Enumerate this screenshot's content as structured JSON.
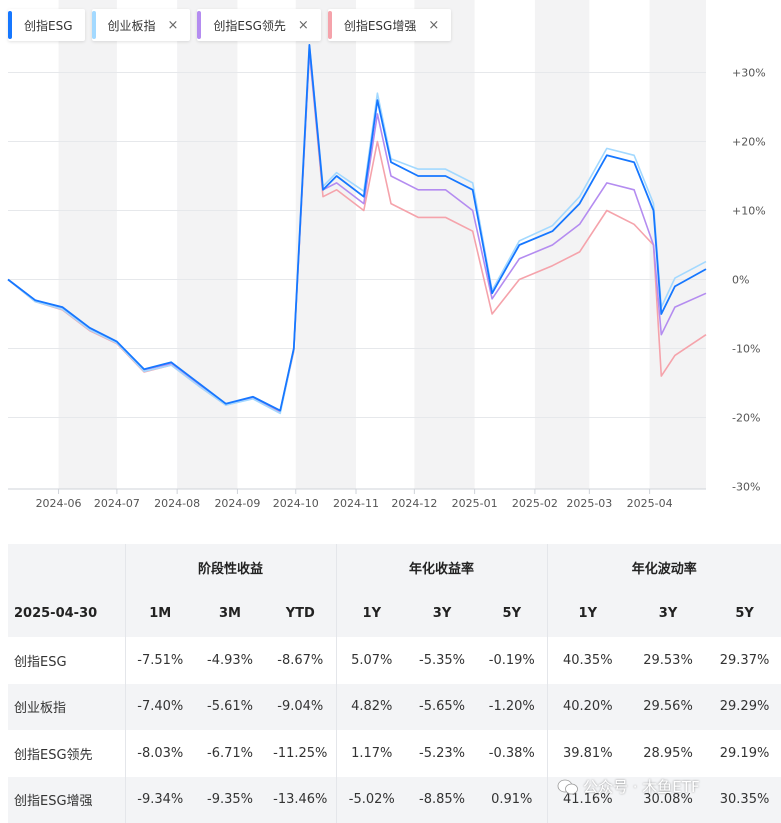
{
  "legend": [
    {
      "label": "创指ESG",
      "color": "#1677ff",
      "closable": false
    },
    {
      "label": "创业板指",
      "color": "#a3d9ff",
      "closable": true,
      "close": "×"
    },
    {
      "label": "创指ESG领先",
      "color": "#b48cf0",
      "closable": true,
      "close": "×"
    },
    {
      "label": "创指ESG增强",
      "color": "#f5a3ab",
      "closable": true,
      "close": "×"
    }
  ],
  "chart_data": {
    "type": "line",
    "x_ticks": [
      "2024-06",
      "2024-07",
      "2024-08",
      "2024-09",
      "2024-10",
      "2024-11",
      "2024-12",
      "2025-01",
      "2025-02",
      "2025-03",
      "2025-04"
    ],
    "y_ticks": [
      "+30%",
      "+20%",
      "+10%",
      "0%",
      "-10%",
      "-20%",
      "-30%"
    ],
    "ylim": [
      -30,
      30
    ],
    "y_axis_position": "right",
    "grid": true,
    "legend_position": "top-left",
    "x": [
      "2024-05-06",
      "2024-05-20",
      "2024-06-03",
      "2024-06-17",
      "2024-07-01",
      "2024-07-15",
      "2024-07-29",
      "2024-08-12",
      "2024-08-26",
      "2024-09-09",
      "2024-09-23",
      "2024-09-30",
      "2024-10-08",
      "2024-10-15",
      "2024-10-22",
      "2024-11-05",
      "2024-11-12",
      "2024-11-19",
      "2024-12-03",
      "2024-12-17",
      "2024-12-31",
      "2025-01-10",
      "2025-01-24",
      "2025-02-10",
      "2025-02-24",
      "2025-03-10",
      "2025-03-24",
      "2025-04-03",
      "2025-04-07",
      "2025-04-14",
      "2025-04-30"
    ],
    "series": [
      {
        "name": "创指ESG",
        "color": "#1677ff",
        "values": [
          0,
          -3,
          -4,
          -7,
          -9,
          -13,
          -12,
          -15,
          -18,
          -17,
          -19,
          -10,
          34,
          13,
          15,
          12,
          26,
          17,
          15,
          15,
          13,
          -2,
          5,
          7,
          11,
          18,
          17,
          10,
          -5,
          -1,
          1.5
        ]
      },
      {
        "name": "创业板指",
        "color": "#a3d9ff",
        "values": [
          0,
          -3.2,
          -4.3,
          -7.3,
          -9.2,
          -13.3,
          -12.4,
          -15.4,
          -18.2,
          -17.3,
          -19.4,
          -10.2,
          34,
          13.5,
          15.5,
          12.8,
          27,
          17.5,
          16,
          16,
          14,
          -1.6,
          5.6,
          7.8,
          12,
          19,
          18,
          11,
          -4,
          0.2,
          2.6
        ]
      },
      {
        "name": "创指ESG领先",
        "color": "#b48cf0",
        "values": [
          0,
          -3,
          -4.2,
          -7.1,
          -9.1,
          -13.1,
          -12.2,
          -15.2,
          -18.1,
          -17.1,
          -19.1,
          -10.1,
          33,
          13,
          14,
          11,
          24,
          15,
          13,
          13,
          10,
          -2.8,
          3,
          5,
          8,
          14,
          13,
          5,
          -8,
          -4,
          -2
        ]
      },
      {
        "name": "创指ESG增强",
        "color": "#f5a3ab",
        "values": [
          0,
          -3.2,
          -4.4,
          -7.4,
          -9.3,
          -13.4,
          -12.4,
          -15.4,
          -18.2,
          -17.2,
          -19.2,
          -10.4,
          33,
          12,
          13,
          10,
          20,
          11,
          9,
          9,
          7,
          -5,
          0,
          2,
          4,
          10,
          8,
          5,
          -14,
          -11,
          -8
        ]
      }
    ]
  },
  "table": {
    "groups": [
      "阶段性收益",
      "年化收益率",
      "年化波动率"
    ],
    "date": "2025-04-30",
    "subheaders": [
      "1M",
      "3M",
      "YTD",
      "1Y",
      "3Y",
      "5Y",
      "1Y",
      "3Y",
      "5Y"
    ],
    "rows": [
      {
        "name": "创指ESG",
        "cells": [
          "-7.51%",
          "-4.93%",
          "-8.67%",
          "5.07%",
          "-5.35%",
          "-0.19%",
          "40.35%",
          "29.53%",
          "29.37%"
        ]
      },
      {
        "name": "创业板指",
        "cells": [
          "-7.40%",
          "-5.61%",
          "-9.04%",
          "4.82%",
          "-5.65%",
          "-1.20%",
          "40.20%",
          "29.56%",
          "29.29%"
        ]
      },
      {
        "name": "创指ESG领先",
        "cells": [
          "-8.03%",
          "-6.71%",
          "-11.25%",
          "1.17%",
          "-5.23%",
          "-0.38%",
          "39.81%",
          "28.95%",
          "29.19%"
        ]
      },
      {
        "name": "创指ESG增强",
        "cells": [
          "-9.34%",
          "-9.35%",
          "-13.46%",
          "-5.02%",
          "-8.85%",
          "0.91%",
          "41.16%",
          "30.08%",
          "30.35%"
        ]
      }
    ]
  },
  "watermark": "公众号 · 木鱼ETF"
}
